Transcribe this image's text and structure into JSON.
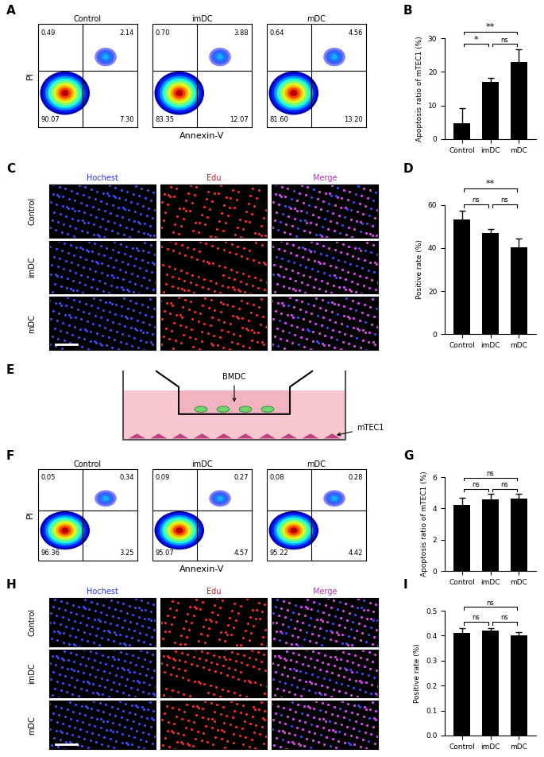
{
  "flow_cytometry": [
    {
      "panel": "A",
      "x_label": "Annexin-V",
      "y_label": "PI",
      "groups": [
        {
          "name": "Control",
          "quadrants": {
            "upper_left": "0.49",
            "upper_right": "2.14",
            "lower_left": "90.07",
            "lower_right": "7.30"
          }
        },
        {
          "name": "imDC",
          "quadrants": {
            "upper_left": "0.70",
            "upper_right": "3.88",
            "lower_left": "83.35",
            "lower_right": "12.07"
          }
        },
        {
          "name": "mDC",
          "quadrants": {
            "upper_left": "0.64",
            "upper_right": "4.56",
            "lower_left": "81.60",
            "lower_right": "13.20"
          }
        }
      ]
    },
    {
      "panel": "F",
      "x_label": "Annexin-V",
      "y_label": "PI",
      "groups": [
        {
          "name": "Control",
          "quadrants": {
            "upper_left": "0.05",
            "upper_right": "0.34",
            "lower_left": "96.36",
            "lower_right": "3.25"
          }
        },
        {
          "name": "imDC",
          "quadrants": {
            "upper_left": "0.09",
            "upper_right": "0.27",
            "lower_left": "95.07",
            "lower_right": "4.57"
          }
        },
        {
          "name": "mDC",
          "quadrants": {
            "upper_left": "0.08",
            "upper_right": "0.28",
            "lower_left": "95.22",
            "lower_right": "4.42"
          }
        }
      ]
    }
  ],
  "chart_data": [
    {
      "panel": "B",
      "type": "bar",
      "categories": [
        "Control",
        "imDC",
        "mDC"
      ],
      "values": [
        4.8,
        17.0,
        22.8
      ],
      "errors": [
        4.5,
        1.3,
        4.0
      ],
      "color": "#000000",
      "y_label": "Apoptosis ratio of mTEC1 (%)",
      "ylim": [
        0,
        30
      ],
      "yticks": [
        0,
        10,
        20,
        30
      ],
      "significance": [
        {
          "from": "Control",
          "to": "imDC",
          "label": "*"
        },
        {
          "from": "imDC",
          "to": "mDC",
          "label": "ns"
        },
        {
          "from": "Control",
          "to": "mDC",
          "label": "**"
        }
      ]
    },
    {
      "panel": "D",
      "type": "bar",
      "categories": [
        "Control",
        "imDC",
        "mDC"
      ],
      "values": [
        53.5,
        47.0,
        40.5
      ],
      "errors": [
        4.0,
        2.0,
        4.0
      ],
      "color": "#000000",
      "y_label": "Positive rate (%)",
      "ylim": [
        0,
        60
      ],
      "yticks": [
        0,
        20,
        40,
        60
      ],
      "significance": [
        {
          "from": "Control",
          "to": "imDC",
          "label": "ns"
        },
        {
          "from": "imDC",
          "to": "mDC",
          "label": "ns"
        },
        {
          "from": "Control",
          "to": "mDC",
          "label": "**"
        }
      ]
    },
    {
      "panel": "G",
      "type": "bar",
      "categories": [
        "Control",
        "imDC",
        "mDC"
      ],
      "values": [
        4.2,
        4.6,
        4.65
      ],
      "errors": [
        0.5,
        0.35,
        0.3
      ],
      "color": "#000000",
      "y_label": "Apoptosis ratio of mTEC1 (%)",
      "ylim": [
        0,
        6
      ],
      "yticks": [
        0,
        2,
        4,
        6
      ],
      "significance": [
        {
          "from": "Control",
          "to": "imDC",
          "label": "ns"
        },
        {
          "from": "imDC",
          "to": "mDC",
          "label": "ns"
        },
        {
          "from": "Control",
          "to": "mDC",
          "label": "ns"
        }
      ]
    },
    {
      "panel": "I",
      "type": "bar",
      "categories": [
        "Control",
        "imDC",
        "mDC"
      ],
      "values": [
        0.41,
        0.42,
        0.4
      ],
      "errors": [
        0.02,
        0.01,
        0.015
      ],
      "color": "#000000",
      "y_label": "Positive rate (%)",
      "ylim": [
        0,
        0.5
      ],
      "yticks": [
        {
          "value": 0,
          "label": "0.0"
        },
        0.1,
        0.2,
        0.3,
        0.4,
        0.5
      ],
      "significance": [
        {
          "from": "Control",
          "to": "imDC",
          "label": "ns"
        },
        {
          "from": "imDC",
          "to": "mDC",
          "label": "ns"
        },
        {
          "from": "Control",
          "to": "mDC",
          "label": "ns"
        }
      ]
    }
  ],
  "microscopy": [
    {
      "panel": "C",
      "channels": [
        "Hochest",
        "Edu",
        "Merge"
      ],
      "groups": [
        "Control",
        "imDC",
        "mDC"
      ]
    },
    {
      "panel": "H",
      "channels": [
        "Hochest",
        "Edu",
        "Merge"
      ],
      "groups": [
        "Control",
        "imDC",
        "mDC"
      ]
    }
  ],
  "diagram": {
    "panel": "E",
    "insert_label": "BMDC",
    "well_label": "mTEC1"
  }
}
